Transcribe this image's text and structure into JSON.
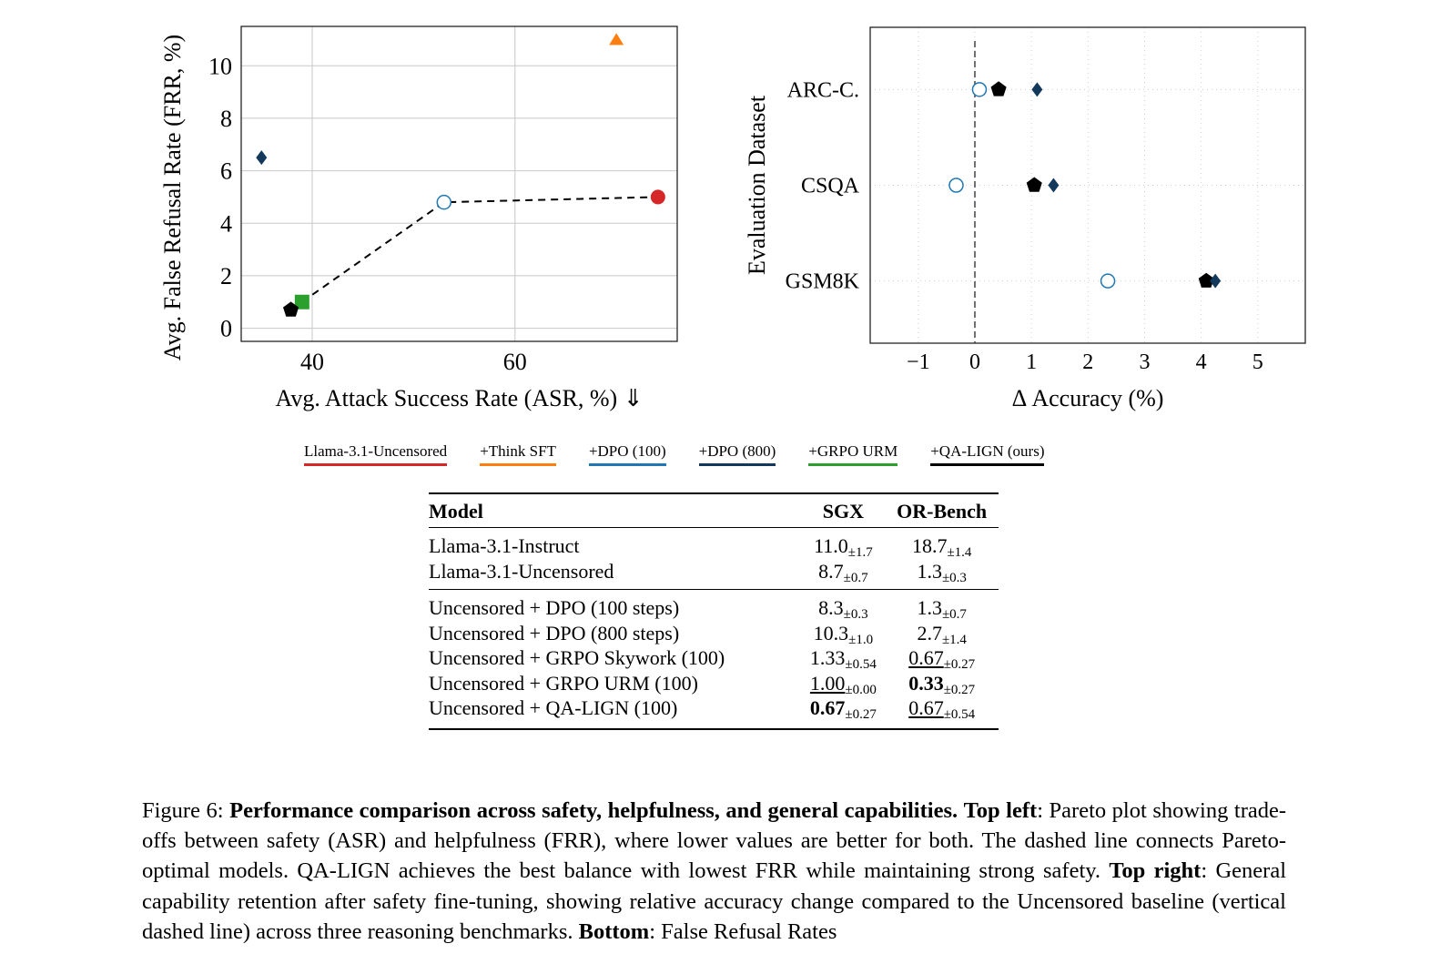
{
  "chart_data": [
    {
      "type": "scatter",
      "xlabel": "Avg. Attack Success Rate (ASR, %) ⇓",
      "ylabel": "Avg. False Refusal Rate (FRR, %)",
      "xlim": [
        33,
        76
      ],
      "ylim": [
        -0.5,
        11.5
      ],
      "xticks": [
        40,
        60
      ],
      "yticks": [
        0,
        2,
        4,
        6,
        8,
        10
      ],
      "grid": true,
      "series": [
        {
          "name": "Llama-3.1-Uncensored",
          "marker": "circle-filled",
          "color": "#d62728",
          "x": [
            74.1
          ],
          "y": [
            5.0
          ]
        },
        {
          "name": "+Think SFT",
          "marker": "triangle",
          "color": "#ff7f0e",
          "x": [
            70.0
          ],
          "y": [
            11.0
          ]
        },
        {
          "name": "+DPO (100)",
          "marker": "circle-open",
          "color": "#1f77b4",
          "x": [
            53.0
          ],
          "y": [
            4.8
          ]
        },
        {
          "name": "+DPO (800)",
          "marker": "diamond",
          "color": "#12395b",
          "x": [
            35.0
          ],
          "y": [
            6.5
          ]
        },
        {
          "name": "+GRPO URM",
          "marker": "square",
          "color": "#2ca02c",
          "x": [
            39.0
          ],
          "y": [
            1.0
          ]
        },
        {
          "name": "+QA-LIGN (ours)",
          "marker": "pentagon",
          "color": "#000000",
          "x": [
            37.9
          ],
          "y": [
            0.7
          ]
        }
      ],
      "pareto_line": {
        "style": "dashed",
        "x": [
          39.0,
          53.0,
          74.1
        ],
        "y": [
          1.0,
          4.8,
          5.0
        ]
      }
    },
    {
      "type": "scatter",
      "xlabel": "Δ Accuracy (%)",
      "ylabel": "Evaluation Dataset",
      "xlim": [
        -1.85,
        5.84
      ],
      "xticks": [
        -1,
        0,
        1,
        2,
        3,
        4,
        5
      ],
      "xtick_labels": [
        "−1",
        "0",
        "1",
        "2",
        "3",
        "4",
        "5"
      ],
      "categories": [
        "ARC-C.",
        "CSQA",
        "GSM8K"
      ],
      "grid": "dotted",
      "reference_line": {
        "x": 0,
        "style": "dashed"
      },
      "series": [
        {
          "name": "+DPO (100)",
          "marker": "circle-open",
          "color": "#1f77b4",
          "values": [
            0.08,
            -0.33,
            2.35
          ]
        },
        {
          "name": "+QA-LIGN (ours)",
          "marker": "pentagon",
          "color": "#000000",
          "values": [
            0.42,
            1.05,
            4.09
          ]
        },
        {
          "name": "+DPO (800)",
          "marker": "diamond",
          "color": "#12395b",
          "values": [
            1.1,
            1.39,
            4.25
          ]
        }
      ]
    }
  ],
  "legend": [
    {
      "label": "Llama-3.1-Uncensored",
      "color": "#d62728"
    },
    {
      "label": "+Think SFT",
      "color": "#ff7f0e"
    },
    {
      "label": "+DPO (100)",
      "color": "#1f77b4"
    },
    {
      "label": "+DPO (800)",
      "color": "#12395b"
    },
    {
      "label": "+GRPO URM",
      "color": "#2ca02c"
    },
    {
      "label_prefix": "+QA-",
      "label_sc": "LIGN",
      "label_suffix": " (ours)",
      "color": "#000000"
    }
  ],
  "table": {
    "headers": [
      "Model",
      "SGX",
      "OR-Bench"
    ],
    "rows": [
      {
        "model": "Llama-3.1-Instruct",
        "sgx": "11.0",
        "sgx_pm": "±1.7",
        "or": "18.7",
        "or_pm": "±1.4"
      },
      {
        "model": "Llama-3.1-Uncensored",
        "sgx": "8.7",
        "sgx_pm": "±0.7",
        "or": "1.3",
        "or_pm": "±0.3"
      },
      {
        "model": "Uncensored + DPO (100 steps)",
        "sgx": "8.3",
        "sgx_pm": "±0.3",
        "or": "1.3",
        "or_pm": "±0.7"
      },
      {
        "model": "Uncensored + DPO (800 steps)",
        "sgx": "10.3",
        "sgx_pm": "±1.0",
        "or": "2.7",
        "or_pm": "±1.4"
      },
      {
        "model": "Uncensored + GRPO Skywork (100)",
        "sgx": "1.33",
        "sgx_pm": "±0.54",
        "or": "0.67",
        "or_pm": "±0.27",
        "or_style": "underline"
      },
      {
        "model": "Uncensored + GRPO URM (100)",
        "sgx": "1.00",
        "sgx_pm": "±0.00",
        "sgx_style": "underline",
        "or": "0.33",
        "or_pm": "±0.27",
        "or_style": "bold"
      },
      {
        "model_prefix": "Uncensored + QA-",
        "model_sc": "LIGN",
        "model_suffix": " (100)",
        "sgx": "0.67",
        "sgx_pm": "±0.27",
        "sgx_style": "bold",
        "or": "0.67",
        "or_pm": "±0.54",
        "or_style": "underline"
      }
    ]
  },
  "caption": {
    "fig": "Figure 6: ",
    "title": "Performance comparison across safety, helpfulness, and general capabilities.",
    "tl_label": "Top left",
    "tl_text": ": Pareto plot showing trade-offs between safety (ASR) and helpfulness (FRR), where lower values are better for both. The dashed line connects Pareto-optimal models. QA-",
    "tl_sc": "LIGN",
    "tl_text2": " achieves the best balance with lowest FRR while maintaining strong safety. ",
    "tr_label": "Top right",
    "tr_text": ": General capability retention after safety fine-tuning, showing relative accuracy change compared to the Uncensored baseline (vertical dashed line) across three reasoning benchmarks. ",
    "b_label": "Bottom",
    "b_text": ": False Refusal Rates"
  }
}
